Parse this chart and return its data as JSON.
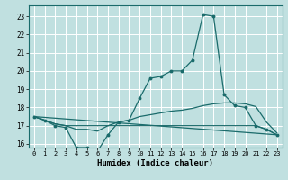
{
  "title": "",
  "xlabel": "Humidex (Indice chaleur)",
  "bg_color": "#c0e0e0",
  "grid_color": "#ffffff",
  "line_color": "#1a6b6b",
  "xlim": [
    -0.5,
    23.5
  ],
  "ylim": [
    15.8,
    23.6
  ],
  "yticks": [
    16,
    17,
    18,
    19,
    20,
    21,
    22,
    23
  ],
  "xticks": [
    0,
    1,
    2,
    3,
    4,
    5,
    6,
    7,
    8,
    9,
    10,
    11,
    12,
    13,
    14,
    15,
    16,
    17,
    18,
    19,
    20,
    21,
    22,
    23
  ],
  "curve1_x": [
    0,
    1,
    2,
    3,
    4,
    5,
    6,
    7,
    8,
    9,
    10,
    11,
    12,
    13,
    14,
    15,
    16,
    17,
    18,
    19,
    20,
    21,
    22,
    23
  ],
  "curve1_y": [
    17.5,
    17.3,
    17.0,
    16.9,
    15.8,
    15.8,
    15.6,
    16.5,
    17.2,
    17.3,
    18.5,
    19.6,
    19.7,
    20.0,
    20.0,
    20.6,
    23.1,
    23.0,
    18.7,
    18.1,
    18.0,
    17.0,
    16.8,
    16.5
  ],
  "curve2_x": [
    0,
    1,
    2,
    3,
    4,
    5,
    6,
    7,
    8,
    9,
    10,
    11,
    12,
    13,
    14,
    15,
    16,
    17,
    18,
    19,
    20,
    21,
    22,
    23
  ],
  "curve2_y": [
    17.5,
    17.3,
    17.1,
    17.0,
    16.8,
    16.8,
    16.7,
    17.0,
    17.2,
    17.3,
    17.5,
    17.6,
    17.7,
    17.8,
    17.85,
    17.95,
    18.1,
    18.2,
    18.25,
    18.25,
    18.2,
    18.05,
    17.2,
    16.6
  ],
  "curve3_x": [
    0,
    1,
    2,
    3,
    4,
    5,
    6,
    7,
    8,
    9,
    10,
    11,
    12,
    13,
    14,
    15,
    16,
    17,
    18,
    19,
    20,
    21,
    22,
    23
  ],
  "curve3_y": [
    17.5,
    17.3,
    17.1,
    17.0,
    17.0,
    17.0,
    17.0,
    17.0,
    17.0,
    17.0,
    17.0,
    17.0,
    17.0,
    17.0,
    17.0,
    17.0,
    17.0,
    17.0,
    17.0,
    17.0,
    17.0,
    17.0,
    16.8,
    16.5
  ],
  "curve4_x": [
    0,
    23
  ],
  "curve4_y": [
    17.5,
    16.5
  ]
}
